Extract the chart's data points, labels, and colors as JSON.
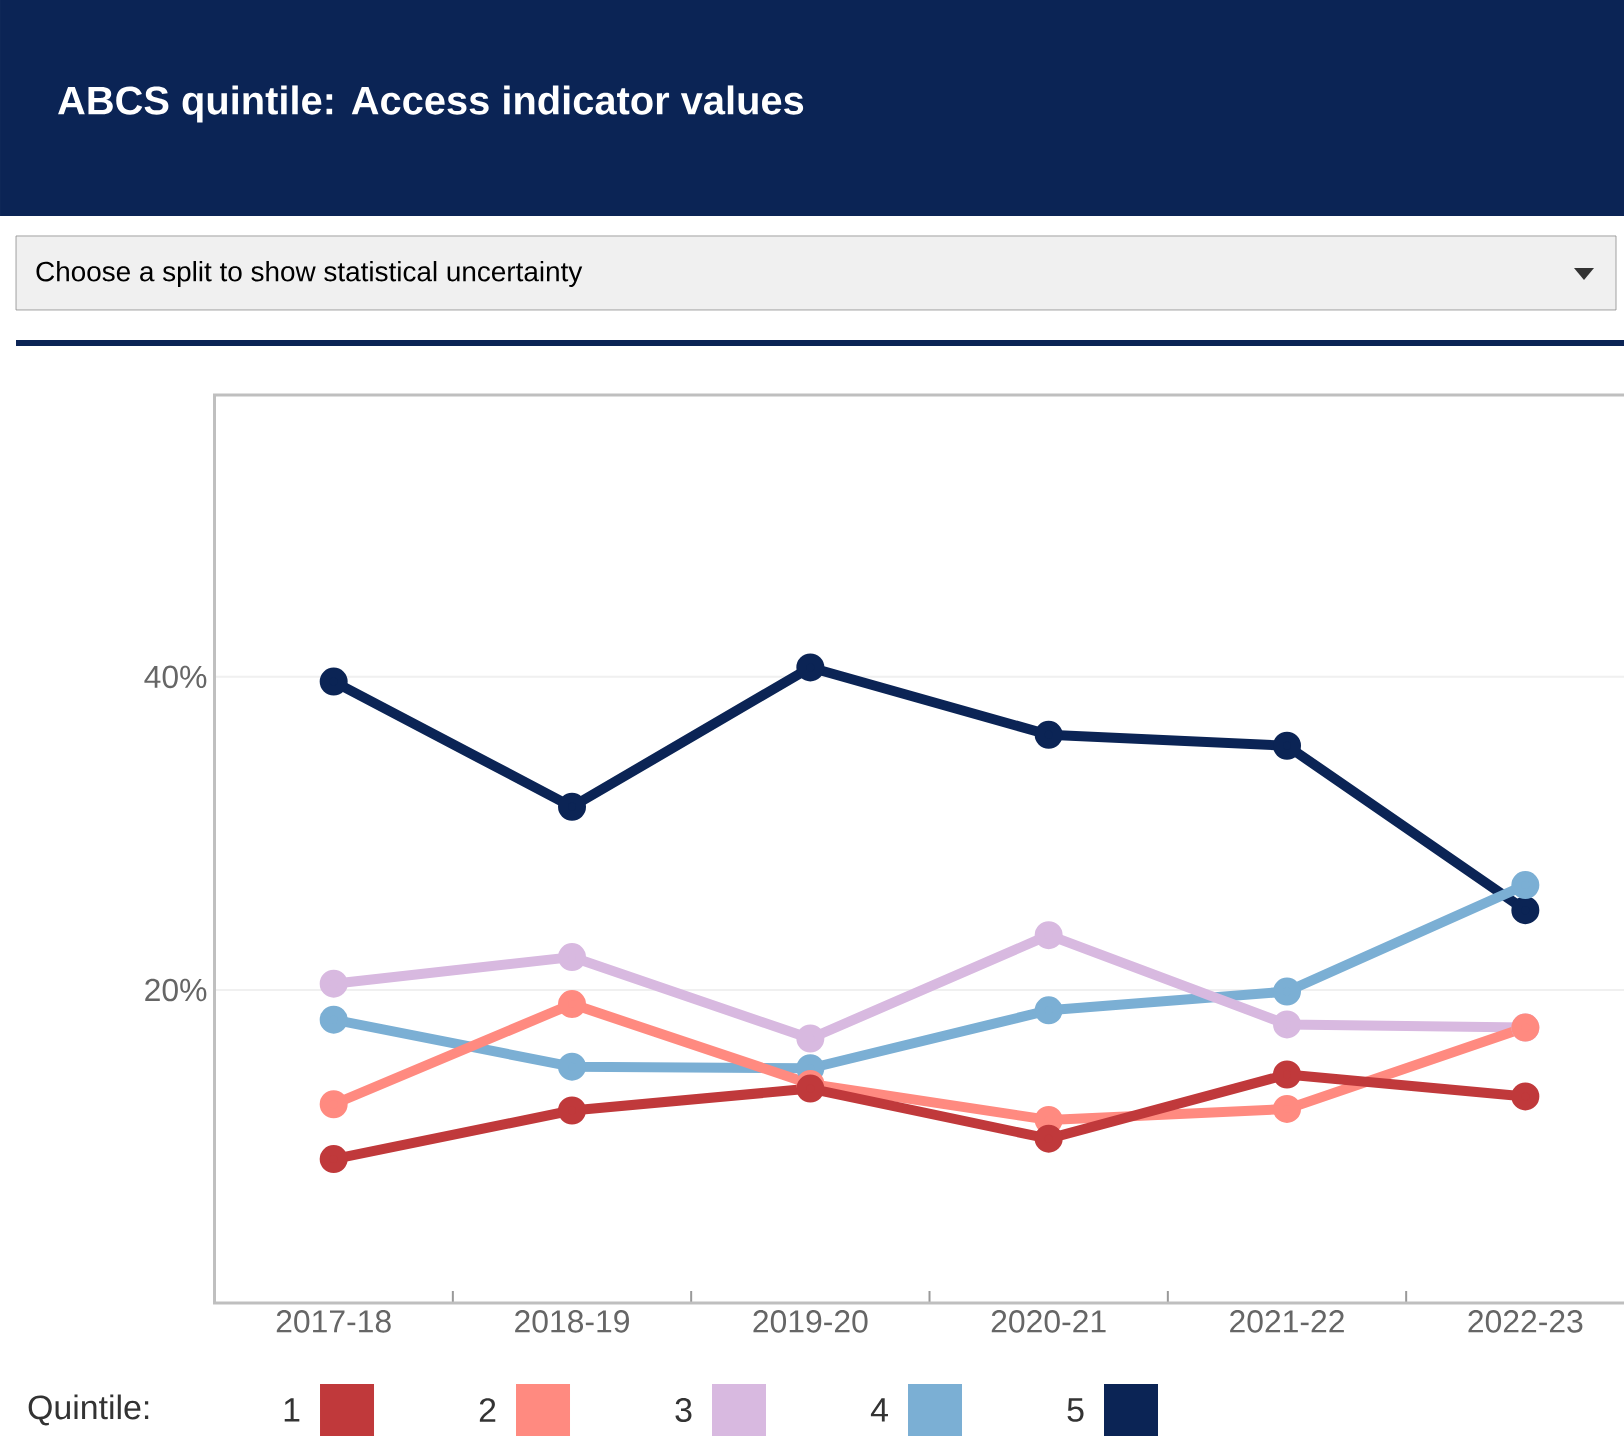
{
  "chart_data": {
    "type": "line",
    "title": "ABCS quintile: Access indicator values",
    "subtitle": "Choose a split to show statistical uncertainty",
    "categories": [
      "2017-18",
      "2018-19",
      "2019-20",
      "2020-21",
      "2021-22",
      "2022-23"
    ],
    "series": [
      {
        "name": "1",
        "color": "#c0393b",
        "values": [
          9.2,
          12.3,
          13.7,
          10.5,
          14.6,
          13.2
        ]
      },
      {
        "name": "2",
        "color": "#ff8a80",
        "values": [
          12.7,
          19.1,
          14.0,
          11.7,
          12.4,
          17.6
        ]
      },
      {
        "name": "3",
        "color": "#d8b9e0",
        "values": [
          20.4,
          22.1,
          16.9,
          23.5,
          17.8,
          17.6
        ]
      },
      {
        "name": "4",
        "color": "#7bafd4",
        "values": [
          18.1,
          15.1,
          15.0,
          18.7,
          19.9,
          26.7
        ]
      },
      {
        "name": "5",
        "color": "#0b2455",
        "values": [
          39.7,
          31.7,
          40.6,
          36.3,
          35.6,
          25.1
        ]
      }
    ],
    "ylim": [
      0,
      58
    ],
    "yticks": [
      {
        "value": 20,
        "label": "20%"
      },
      {
        "value": 40,
        "label": "40%"
      }
    ],
    "grid": "y",
    "legend": "bottom",
    "legend_title": "Quintile:",
    "marker": "circle",
    "line_style": "solid"
  }
}
